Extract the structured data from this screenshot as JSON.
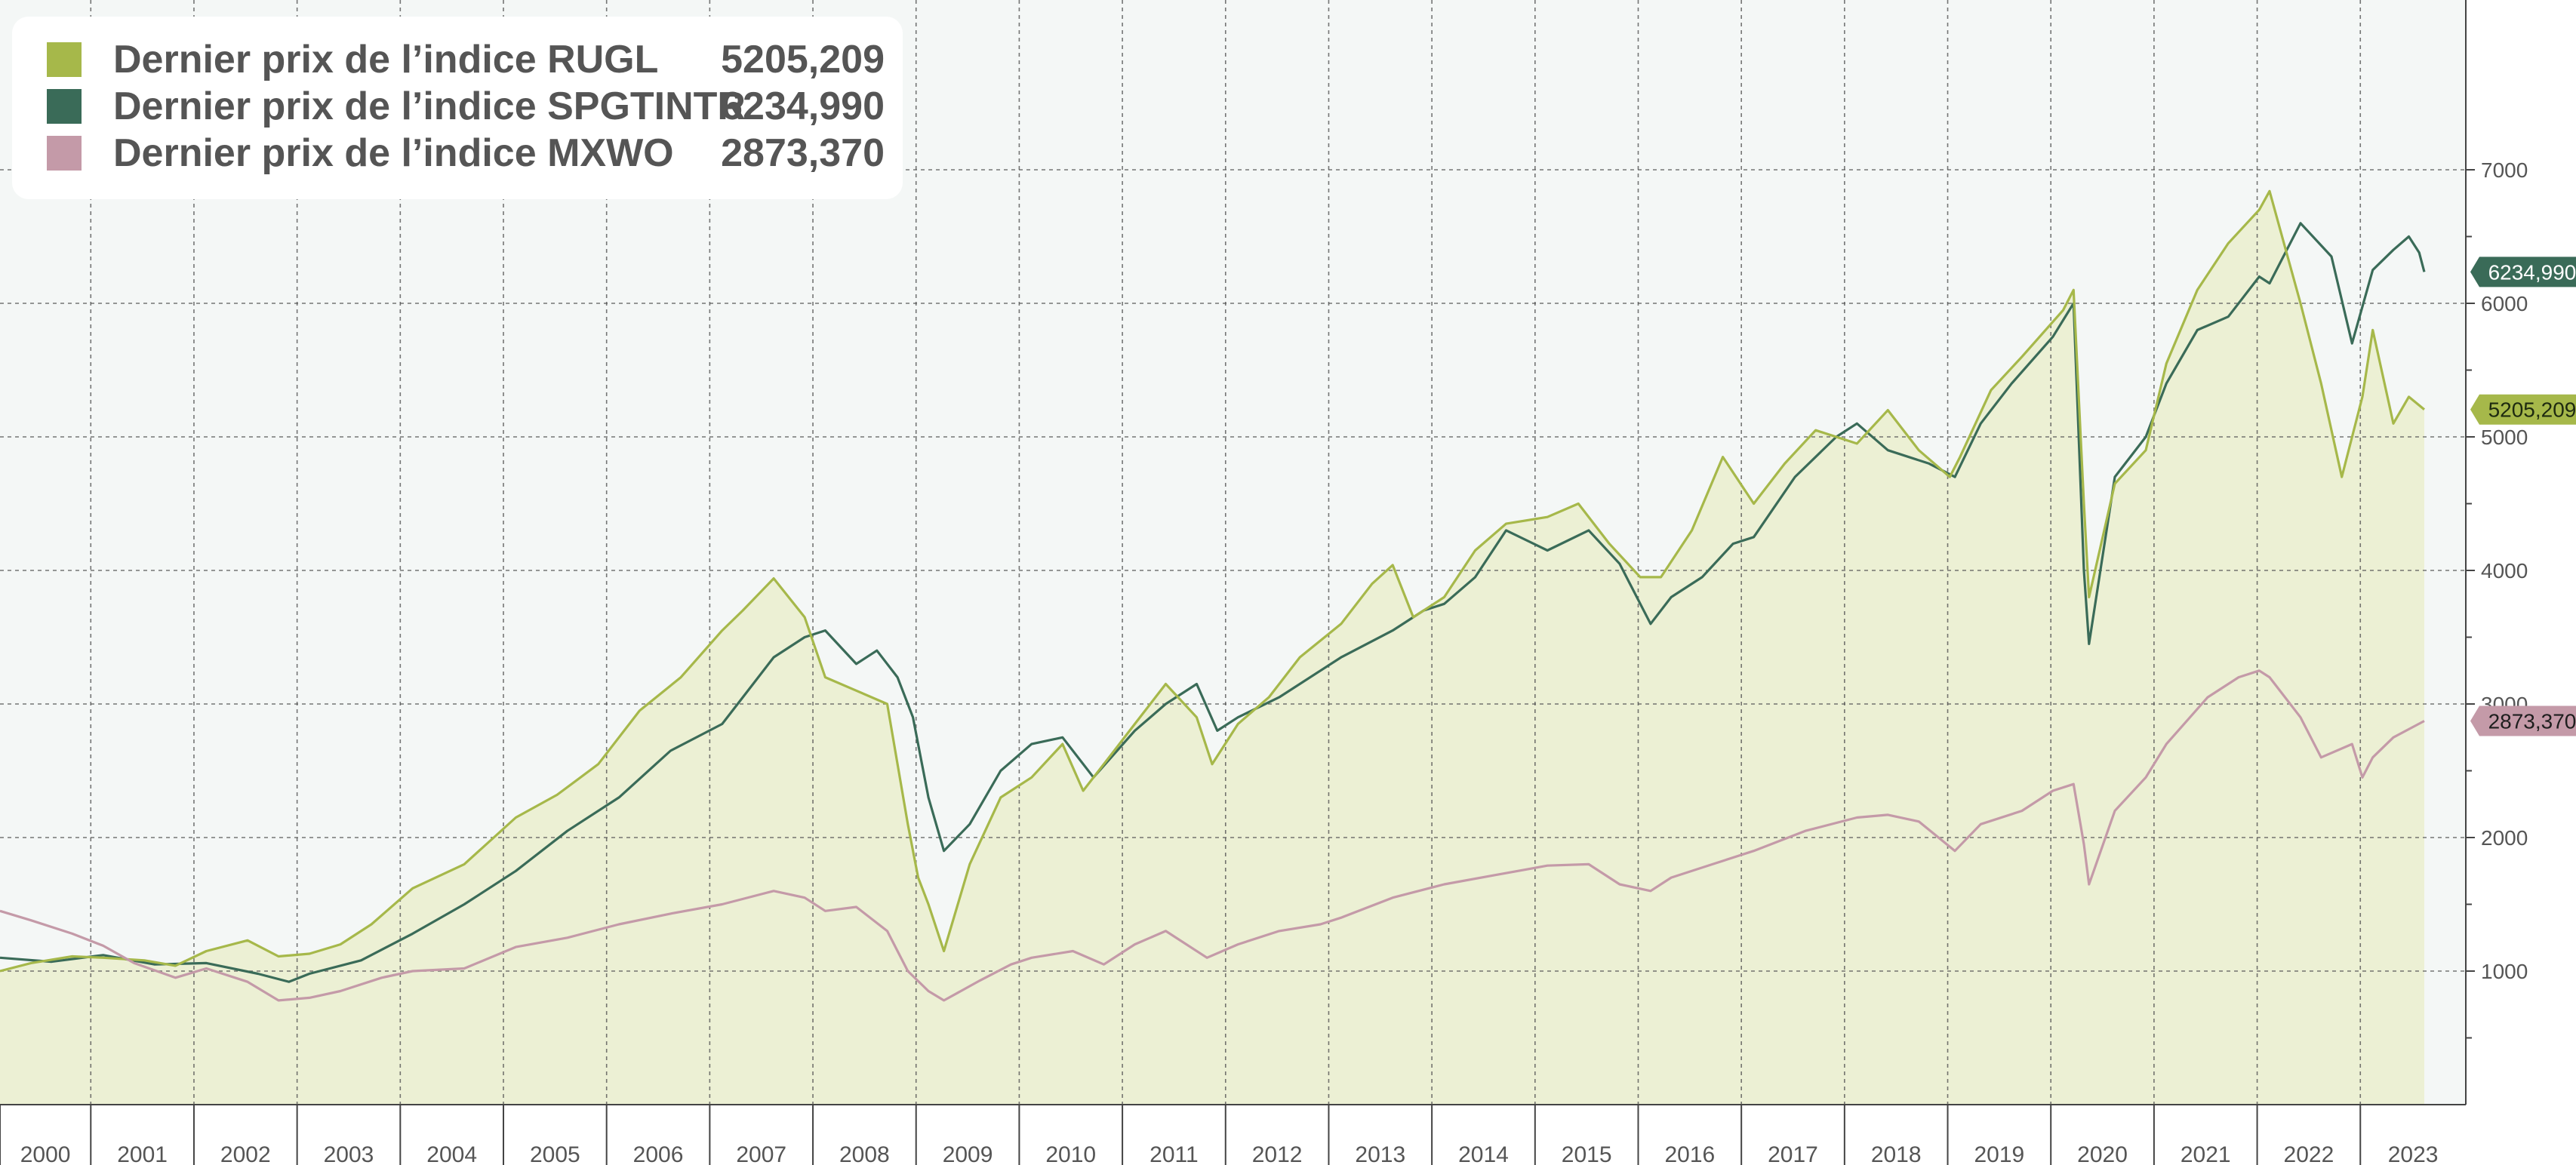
{
  "legend": {
    "items": [
      {
        "label": "Dernier prix de l’indice RUGL",
        "value": "5205,209",
        "color": "#a6b84a"
      },
      {
        "label": "Dernier prix de l’indice SPGTINTR",
        "value": "6234,990",
        "color": "#3a6b58"
      },
      {
        "label": "Dernier prix de l’indice MXWO",
        "value": "2873,370",
        "color": "#c49aa8"
      }
    ]
  },
  "colors": {
    "plot_background": "#f4f7f6",
    "area_fill": "#ecf0d4",
    "grid": "#555555",
    "axis_text": "#555555"
  },
  "chart_data": {
    "type": "line",
    "x_unit": "year (decimal)",
    "xlim": [
      2000.0,
      2023.5
    ],
    "ylim": [
      0,
      7200
    ],
    "y_ticks": [
      1000,
      2000,
      3000,
      4000,
      5000,
      6000,
      7000
    ],
    "y_tick_labels": [
      "1000",
      "2000",
      "3000",
      "4000",
      "5000",
      "6000",
      "7000"
    ],
    "x_tick_labels": [
      "2000",
      "2001",
      "2002",
      "2003",
      "2004",
      "2005",
      "2006",
      "2007",
      "2008",
      "2009",
      "2010",
      "2011",
      "2012",
      "2013",
      "2014",
      "2015",
      "2016",
      "2017",
      "2018",
      "2019",
      "2020",
      "2021",
      "2022",
      "2023"
    ],
    "grid": true,
    "legend_position": "top-left",
    "last_value_labels": [
      "6234,990",
      "5205,209",
      "2873,370"
    ],
    "series": [
      {
        "name": "Dernier prix de l’indice RUGL",
        "color": "#a6b84a",
        "area": true,
        "x": [
          2000.0,
          2000.3,
          2000.7,
          2001.0,
          2001.4,
          2001.7,
          2002.0,
          2002.4,
          2002.7,
          2003.0,
          2003.3,
          2003.6,
          2004.0,
          2004.5,
          2005.0,
          2005.4,
          2005.8,
          2006.2,
          2006.6,
          2007.0,
          2007.2,
          2007.5,
          2007.8,
          2008.0,
          2008.3,
          2008.6,
          2008.8,
          2008.9,
          2009.0,
          2009.15,
          2009.4,
          2009.7,
          2010.0,
          2010.3,
          2010.5,
          2010.8,
          2011.0,
          2011.3,
          2011.6,
          2011.75,
          2012.0,
          2012.3,
          2012.6,
          2013.0,
          2013.3,
          2013.5,
          2013.7,
          2014.0,
          2014.3,
          2014.6,
          2015.0,
          2015.3,
          2015.6,
          2015.9,
          2016.1,
          2016.4,
          2016.7,
          2017.0,
          2017.3,
          2017.6,
          2018.0,
          2018.3,
          2018.6,
          2018.9,
          2019.0,
          2019.3,
          2019.6,
          2020.0,
          2020.1,
          2020.2,
          2020.25,
          2020.5,
          2020.8,
          2021.0,
          2021.3,
          2021.6,
          2021.9,
          2022.0,
          2022.3,
          2022.5,
          2022.7,
          2022.9,
          2023.0,
          2023.2,
          2023.35,
          2023.5
        ],
        "values": [
          1000,
          1060,
          1110,
          1100,
          1080,
          1040,
          1150,
          1230,
          1110,
          1130,
          1200,
          1350,
          1620,
          1800,
          2150,
          2320,
          2550,
          2950,
          3200,
          3550,
          3700,
          3940,
          3650,
          3200,
          3100,
          3000,
          2100,
          1700,
          1500,
          1150,
          1800,
          2300,
          2450,
          2700,
          2350,
          2650,
          2850,
          3150,
          2900,
          2550,
          2850,
          3050,
          3350,
          3600,
          3900,
          4040,
          3650,
          3800,
          4150,
          4350,
          4400,
          4500,
          4200,
          3950,
          3950,
          4300,
          4850,
          4500,
          4800,
          5050,
          4950,
          5200,
          4900,
          4700,
          4850,
          5350,
          5600,
          5950,
          6100,
          4500,
          3800,
          4650,
          4900,
          5550,
          6100,
          6450,
          6700,
          6840,
          6000,
          5400,
          4700,
          5300,
          5800,
          5100,
          5300,
          5205
        ]
      },
      {
        "name": "Dernier prix de l’indice SPGTINTR",
        "color": "#3a6b58",
        "area": false,
        "x": [
          2000.0,
          2000.5,
          2001.0,
          2001.5,
          2002.0,
          2002.5,
          2002.8,
          2003.0,
          2003.5,
          2004.0,
          2004.5,
          2005.0,
          2005.5,
          2006.0,
          2006.5,
          2007.0,
          2007.3,
          2007.5,
          2007.8,
          2008.0,
          2008.3,
          2008.5,
          2008.7,
          2008.85,
          2009.0,
          2009.15,
          2009.4,
          2009.7,
          2010.0,
          2010.3,
          2010.6,
          2011.0,
          2011.3,
          2011.6,
          2011.8,
          2012.0,
          2012.4,
          2012.8,
          2013.0,
          2013.5,
          2013.8,
          2014.0,
          2014.3,
          2014.6,
          2015.0,
          2015.4,
          2015.7,
          2016.0,
          2016.2,
          2016.5,
          2016.8,
          2017.0,
          2017.4,
          2017.8,
          2018.0,
          2018.3,
          2018.7,
          2018.95,
          2019.2,
          2019.5,
          2019.9,
          2020.1,
          2020.2,
          2020.25,
          2020.5,
          2020.8,
          2021.0,
          2021.3,
          2021.6,
          2021.9,
          2022.0,
          2022.3,
          2022.6,
          2022.8,
          2023.0,
          2023.2,
          2023.35,
          2023.45,
          2023.5
        ],
        "values": [
          1100,
          1070,
          1120,
          1050,
          1060,
          980,
          920,
          980,
          1080,
          1280,
          1500,
          1750,
          2050,
          2300,
          2650,
          2850,
          3150,
          3350,
          3500,
          3550,
          3300,
          3400,
          3200,
          2900,
          2300,
          1900,
          2100,
          2500,
          2700,
          2750,
          2450,
          2800,
          3000,
          3150,
          2800,
          2900,
          3050,
          3250,
          3350,
          3550,
          3700,
          3750,
          3950,
          4300,
          4150,
          4300,
          4050,
          3600,
          3800,
          3950,
          4200,
          4250,
          4700,
          5000,
          5100,
          4900,
          4800,
          4700,
          5100,
          5400,
          5750,
          6000,
          4000,
          3450,
          4700,
          5000,
          5400,
          5800,
          5900,
          6200,
          6150,
          6600,
          6350,
          5700,
          6250,
          6400,
          6500,
          6380,
          6235
        ]
      },
      {
        "name": "Dernier prix de l’indice MXWO",
        "color": "#c49aa8",
        "area": false,
        "x": [
          2000.0,
          2000.3,
          2000.7,
          2001.0,
          2001.3,
          2001.7,
          2002.0,
          2002.4,
          2002.7,
          2003.0,
          2003.3,
          2003.7,
          2004.0,
          2004.5,
          2005.0,
          2005.5,
          2006.0,
          2006.5,
          2007.0,
          2007.5,
          2007.8,
          2008.0,
          2008.3,
          2008.6,
          2008.8,
          2009.0,
          2009.15,
          2009.5,
          2009.8,
          2010.0,
          2010.4,
          2010.7,
          2011.0,
          2011.3,
          2011.7,
          2012.0,
          2012.4,
          2012.8,
          2013.0,
          2013.5,
          2014.0,
          2014.5,
          2015.0,
          2015.4,
          2015.7,
          2016.0,
          2016.2,
          2016.6,
          2017.0,
          2017.5,
          2018.0,
          2018.3,
          2018.6,
          2018.95,
          2019.2,
          2019.6,
          2019.9,
          2020.1,
          2020.2,
          2020.25,
          2020.5,
          2020.8,
          2021.0,
          2021.4,
          2021.7,
          2021.9,
          2022.0,
          2022.3,
          2022.5,
          2022.8,
          2022.9,
          2023.0,
          2023.2,
          2023.5
        ],
        "values": [
          1450,
          1380,
          1280,
          1190,
          1060,
          950,
          1020,
          920,
          780,
          800,
          850,
          950,
          1000,
          1020,
          1180,
          1250,
          1350,
          1430,
          1500,
          1600,
          1550,
          1450,
          1480,
          1300,
          1000,
          850,
          780,
          930,
          1050,
          1100,
          1150,
          1050,
          1200,
          1300,
          1100,
          1200,
          1300,
          1350,
          1400,
          1550,
          1650,
          1720,
          1790,
          1800,
          1650,
          1600,
          1700,
          1800,
          1900,
          2050,
          2150,
          2170,
          2120,
          1900,
          2100,
          2200,
          2350,
          2400,
          1950,
          1650,
          2200,
          2450,
          2700,
          3050,
          3200,
          3250,
          3200,
          2900,
          2600,
          2700,
          2450,
          2600,
          2750,
          2873
        ]
      }
    ]
  }
}
